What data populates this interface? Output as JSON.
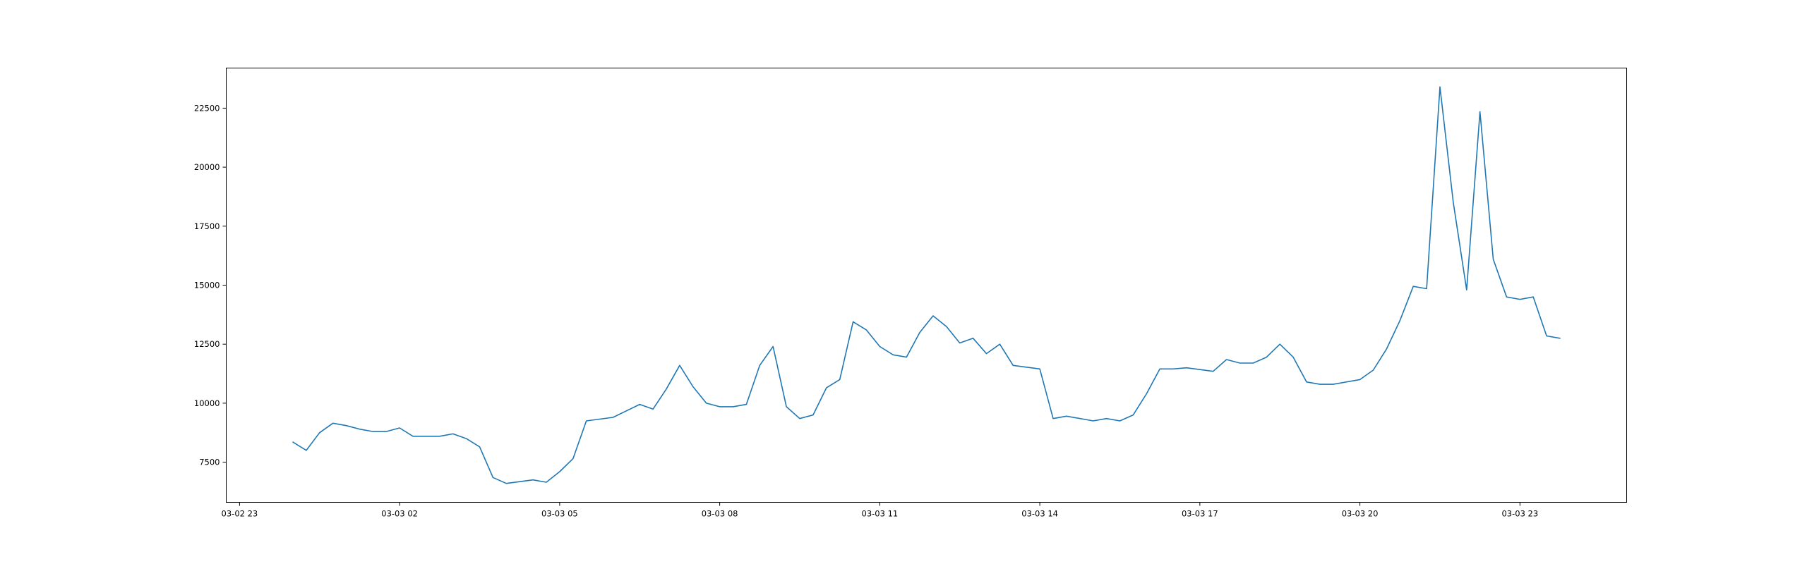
{
  "chart_data": {
    "type": "line",
    "title": "",
    "xlabel": "",
    "ylabel": "",
    "grid": false,
    "legend": "none",
    "x_axis": {
      "type": "datetime",
      "range": [
        "2024-03-02 22:45",
        "2024-03-04 01:00"
      ],
      "ticks": [
        "2024-03-02 23:00",
        "2024-03-03 02:00",
        "2024-03-03 05:00",
        "2024-03-03 08:00",
        "2024-03-03 11:00",
        "2024-03-03 14:00",
        "2024-03-03 17:00",
        "2024-03-03 20:00",
        "2024-03-03 23:00"
      ],
      "tick_labels": [
        "03-02 23",
        "03-03 02",
        "03-03 05",
        "03-03 08",
        "03-03 11",
        "03-03 14",
        "03-03 17",
        "03-03 20",
        "03-03 23"
      ]
    },
    "y_axis": {
      "range": [
        5800,
        24200
      ],
      "ticks": [
        7500,
        10000,
        12500,
        15000,
        17500,
        20000,
        22500
      ],
      "tick_labels": [
        "7500",
        "10000",
        "12500",
        "15000",
        "17500",
        "20000",
        "22500"
      ]
    },
    "series": [
      {
        "color": "#1f77b4",
        "x": [
          "2024-03-03 00:00",
          "2024-03-03 00:15",
          "2024-03-03 00:30",
          "2024-03-03 00:45",
          "2024-03-03 01:00",
          "2024-03-03 01:15",
          "2024-03-03 01:30",
          "2024-03-03 01:45",
          "2024-03-03 02:00",
          "2024-03-03 02:15",
          "2024-03-03 02:30",
          "2024-03-03 02:45",
          "2024-03-03 03:00",
          "2024-03-03 03:15",
          "2024-03-03 03:30",
          "2024-03-03 03:45",
          "2024-03-03 04:00",
          "2024-03-03 04:30",
          "2024-03-03 04:45",
          "2024-03-03 05:00",
          "2024-03-03 05:15",
          "2024-03-03 05:30",
          "2024-03-03 06:00",
          "2024-03-03 06:30",
          "2024-03-03 06:45",
          "2024-03-03 07:00",
          "2024-03-03 07:15",
          "2024-03-03 07:30",
          "2024-03-03 07:45",
          "2024-03-03 08:00",
          "2024-03-03 08:15",
          "2024-03-03 08:30",
          "2024-03-03 08:45",
          "2024-03-03 09:00",
          "2024-03-03 09:15",
          "2024-03-03 09:30",
          "2024-03-03 09:45",
          "2024-03-03 10:00",
          "2024-03-03 10:15",
          "2024-03-03 10:30",
          "2024-03-03 10:45",
          "2024-03-03 11:00",
          "2024-03-03 11:15",
          "2024-03-03 11:30",
          "2024-03-03 11:45",
          "2024-03-03 12:00",
          "2024-03-03 12:15",
          "2024-03-03 12:30",
          "2024-03-03 12:45",
          "2024-03-03 13:00",
          "2024-03-03 13:15",
          "2024-03-03 13:30",
          "2024-03-03 14:00",
          "2024-03-03 14:15",
          "2024-03-03 14:30",
          "2024-03-03 15:00",
          "2024-03-03 15:15",
          "2024-03-03 15:30",
          "2024-03-03 15:45",
          "2024-03-03 16:00",
          "2024-03-03 16:15",
          "2024-03-03 16:30",
          "2024-03-03 16:45",
          "2024-03-03 17:15",
          "2024-03-03 17:30",
          "2024-03-03 17:45",
          "2024-03-03 18:00",
          "2024-03-03 18:15",
          "2024-03-03 18:30",
          "2024-03-03 18:45",
          "2024-03-03 19:00",
          "2024-03-03 19:15",
          "2024-03-03 19:30",
          "2024-03-03 20:00",
          "2024-03-03 20:15",
          "2024-03-03 20:30",
          "2024-03-03 20:45",
          "2024-03-03 21:00",
          "2024-03-03 21:15",
          "2024-03-03 21:30",
          "2024-03-03 21:45",
          "2024-03-03 22:00",
          "2024-03-03 22:15",
          "2024-03-03 22:30",
          "2024-03-03 22:45",
          "2024-03-03 23:00",
          "2024-03-03 23:15",
          "2024-03-03 23:30",
          "2024-03-03 23:45"
        ],
        "y": [
          8350,
          8000,
          8750,
          9150,
          9050,
          8900,
          8800,
          8800,
          8950,
          8600,
          8600,
          8600,
          8700,
          8500,
          8150,
          6850,
          6600,
          6750,
          6650,
          7100,
          7650,
          9250,
          9400,
          9950,
          9750,
          10600,
          11600,
          10700,
          10000,
          9850,
          9850,
          9950,
          11600,
          12400,
          9850,
          9350,
          9500,
          10650,
          11000,
          13450,
          13100,
          12400,
          12050,
          11950,
          13000,
          13700,
          13250,
          12550,
          12750,
          12100,
          12500,
          11600,
          11450,
          9350,
          9450,
          9250,
          9350,
          9250,
          9500,
          10400,
          11450,
          11450,
          11500,
          11350,
          11850,
          11700,
          11700,
          11950,
          12500,
          11950,
          10900,
          10800,
          10800,
          11000,
          11400,
          12300,
          13500,
          14950,
          14850,
          23400,
          18500,
          14800,
          22350,
          16100,
          14500,
          14400,
          14500,
          12850,
          12750
        ]
      }
    ]
  }
}
